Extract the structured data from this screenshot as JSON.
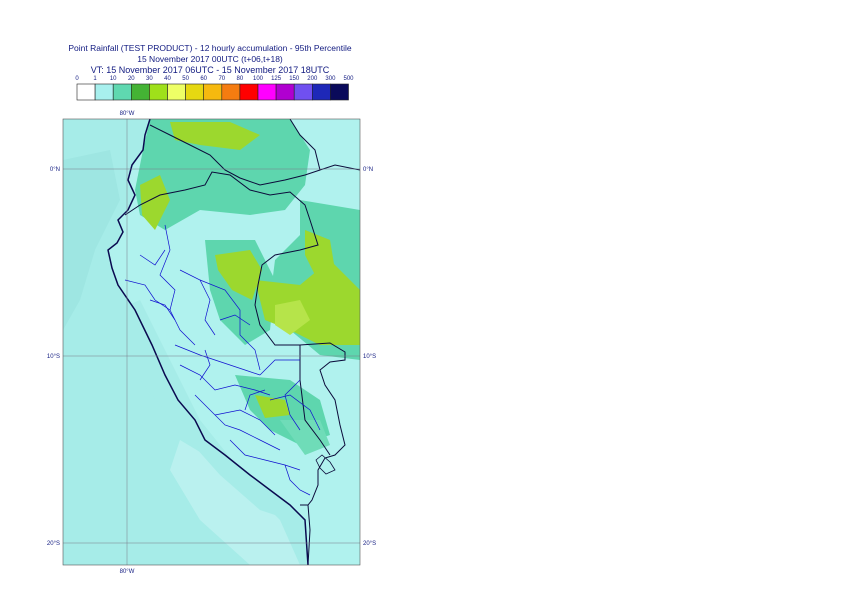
{
  "title": {
    "line1": "Point Rainfall (TEST PRODUCT) - 12 hourly accumulation - 95th Percentile",
    "line2": "15 November 2017 00UTC (t+06,t+18)",
    "line3": "VT: 15 November 2017 06UTC - 15 November 2017 18UTC"
  },
  "legend": {
    "ticks": [
      "0",
      "1",
      "10",
      "20",
      "30",
      "40",
      "50",
      "60",
      "70",
      "80",
      "100",
      "125",
      "150",
      "200",
      "300",
      "500"
    ],
    "colors": [
      "#ffffff",
      "#a8f0ee",
      "#5fd8b0",
      "#44b334",
      "#9fe01a",
      "#eeff66",
      "#e6d811",
      "#f6b90f",
      "#f57c10",
      "#ff0000",
      "#ff00ff",
      "#b000d0",
      "#7050f0",
      "#1e28b8",
      "#0a0a5a"
    ]
  },
  "map": {
    "lat_labels": [
      "0°N",
      "10°S",
      "20°S"
    ],
    "lon_labels_top": [
      "80°W"
    ],
    "lon_labels_bottom": [
      "80°W"
    ],
    "colors": {
      "ocean": "#a6ece8",
      "land_light": "#b0f2ee",
      "teal": "#5ed6ae",
      "green": "#9cd82e",
      "lime": "#b6e44a",
      "coast": "#0a0a50",
      "border": "#0b0b3a",
      "admin": "#1010d0"
    }
  }
}
